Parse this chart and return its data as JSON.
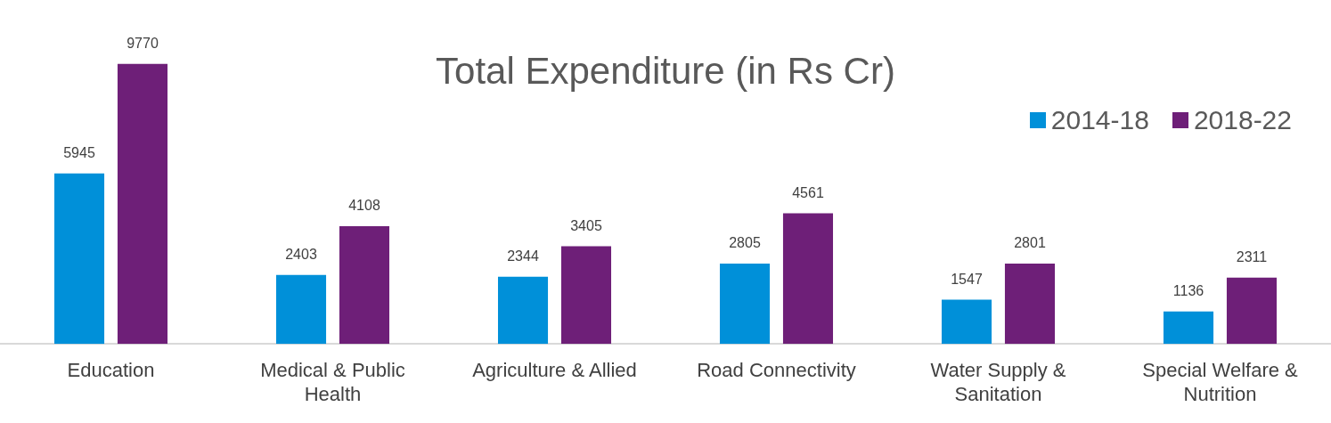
{
  "chart_data": {
    "type": "bar",
    "title": "Total Expenditure (in Rs Cr)",
    "categories": [
      "Education",
      "Medical & Public Health",
      "Agriculture & Allied",
      "Road Connectivity",
      "Water Supply & Sanitation",
      "Special Welfare & Nutrition"
    ],
    "series": [
      {
        "name": "2014-18",
        "color": "#0090d9",
        "values": [
          5945,
          2403,
          2344,
          2805,
          1547,
          1136
        ]
      },
      {
        "name": "2018-22",
        "color": "#6e1f78",
        "values": [
          9770,
          4108,
          3405,
          4561,
          2801,
          2311
        ]
      }
    ],
    "data_labels": true,
    "legend": "top right",
    "grid": false,
    "tick_labels": "x"
  }
}
